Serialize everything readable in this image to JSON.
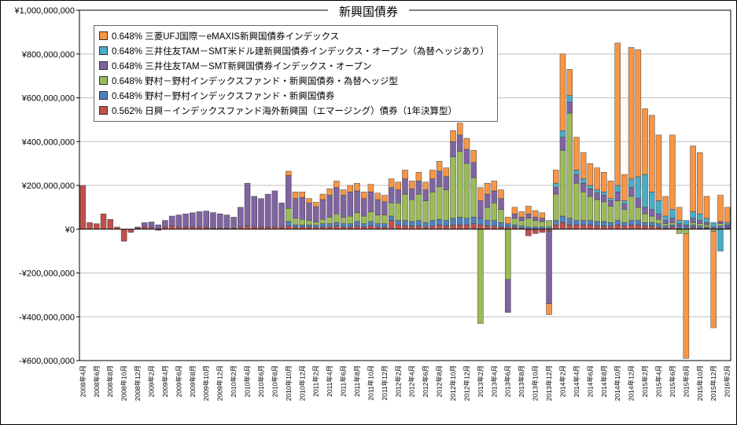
{
  "title": "新興国債券",
  "chart_data": {
    "type": "bar",
    "stacked": true,
    "title": "新興国債券",
    "grid": "horizontal",
    "legend_position": "top-left-inside",
    "series_values_unit": "million_jpy",
    "unit_multiplier": 1000000,
    "ylim": [
      -600000000,
      1000000000
    ],
    "y_ticks": [
      {
        "value": 1000000000,
        "label": "¥1,000,000,000"
      },
      {
        "value": 800000000,
        "label": "¥800,000,000"
      },
      {
        "value": 600000000,
        "label": "¥600,000,000"
      },
      {
        "value": 400000000,
        "label": "¥400,000,000"
      },
      {
        "value": 200000000,
        "label": "¥200,000,000"
      },
      {
        "value": 0,
        "label": "¥0"
      },
      {
        "value": -200000000,
        "label": "-¥200,000,000"
      },
      {
        "value": -400000000,
        "label": "-¥400,000,000"
      },
      {
        "value": -600000000,
        "label": "-¥600,000,000"
      }
    ],
    "x_label_interval": 2,
    "categories": [
      "2008年4月",
      "2008年5月",
      "2008年6月",
      "2008年7月",
      "2008年8月",
      "2008年9月",
      "2008年10月",
      "2008年11月",
      "2008年12月",
      "2009年1月",
      "2009年2月",
      "2009年3月",
      "2009年4月",
      "2009年5月",
      "2009年6月",
      "2009年7月",
      "2009年8月",
      "2009年9月",
      "2009年10月",
      "2009年11月",
      "2009年12月",
      "2010年1月",
      "2010年2月",
      "2010年3月",
      "2010年4月",
      "2010年5月",
      "2010年6月",
      "2010年7月",
      "2010年8月",
      "2010年9月",
      "2010年10月",
      "2010年11月",
      "2010年12月",
      "2011年1月",
      "2011年2月",
      "2011年3月",
      "2011年4月",
      "2011年5月",
      "2011年6月",
      "2011年7月",
      "2011年8月",
      "2011年9月",
      "2011年10月",
      "2011年11月",
      "2011年12月",
      "2012年1月",
      "2012年2月",
      "2012年3月",
      "2012年4月",
      "2012年5月",
      "2012年6月",
      "2012年7月",
      "2012年8月",
      "2012年9月",
      "2012年10月",
      "2012年11月",
      "2012年12月",
      "2013年1月",
      "2013年2月",
      "2013年3月",
      "2013年4月",
      "2013年5月",
      "2013年6月",
      "2013年7月",
      "2013年8月",
      "2013年9月",
      "2013年10月",
      "2013年11月",
      "2013年12月",
      "2014年1月",
      "2014年2月",
      "2014年3月",
      "2014年4月",
      "2014年5月",
      "2014年6月",
      "2014年7月",
      "2014年8月",
      "2014年9月",
      "2014年10月",
      "2014年11月",
      "2014年12月",
      "2015年1月",
      "2015年2月",
      "2015年3月",
      "2015年4月",
      "2015年5月",
      "2015年6月",
      "2015年7月",
      "2015年8月",
      "2015年9月",
      "2015年10月",
      "2015年11月",
      "2015年12月",
      "2016年1月",
      "2016年2月"
    ],
    "series": [
      {
        "name": "0.648% 三菱UFJ国際－eMAXIS新興国債券インデックス",
        "key": "emaxis",
        "color": "#F79646",
        "values": [
          0,
          0,
          0,
          0,
          0,
          0,
          0,
          0,
          0,
          0,
          0,
          0,
          0,
          0,
          0,
          0,
          0,
          0,
          0,
          0,
          0,
          0,
          0,
          0,
          0,
          0,
          0,
          0,
          0,
          0,
          20,
          30,
          25,
          20,
          20,
          25,
          30,
          30,
          25,
          30,
          35,
          30,
          35,
          30,
          30,
          40,
          35,
          40,
          35,
          40,
          35,
          40,
          45,
          40,
          50,
          55,
          50,
          55,
          60,
          50,
          45,
          40,
          30,
          30,
          25,
          35,
          30,
          25,
          -50,
          60,
          350,
          120,
          150,
          120,
          100,
          100,
          90,
          80,
          650,
          120,
          600,
          580,
          300,
          350,
          300,
          90,
          340,
          60,
          -570,
          300,
          280,
          100,
          -440,
          120,
          70
        ]
      },
      {
        "name": "0.648% 三井住友TAM－SMT米ドル建新興国債券インデックス・オープン（為替ヘッジあり）",
        "key": "smt_usd_hedged",
        "color": "#4BACC6",
        "values": [
          0,
          0,
          0,
          0,
          0,
          0,
          0,
          0,
          0,
          0,
          0,
          0,
          0,
          0,
          0,
          0,
          0,
          0,
          0,
          0,
          0,
          0,
          0,
          0,
          0,
          0,
          0,
          0,
          0,
          0,
          0,
          0,
          0,
          0,
          0,
          0,
          0,
          0,
          0,
          0,
          0,
          0,
          0,
          0,
          0,
          0,
          0,
          0,
          0,
          0,
          0,
          0,
          0,
          0,
          0,
          0,
          0,
          0,
          0,
          0,
          0,
          0,
          0,
          0,
          0,
          0,
          0,
          0,
          0,
          20,
          30,
          30,
          20,
          20,
          15,
          15,
          15,
          10,
          30,
          15,
          40,
          100,
          150,
          80,
          60,
          20,
          40,
          15,
          20,
          30,
          30,
          20,
          20,
          -100,
          10
        ]
      },
      {
        "name": "0.648% 三井住友TAM－SMT新興国債券インデックス・オープン",
        "key": "smt",
        "color": "#8064A2",
        "values": [
          0,
          0,
          0,
          0,
          0,
          0,
          0,
          0,
          5,
          20,
          25,
          20,
          30,
          45,
          55,
          60,
          65,
          70,
          75,
          70,
          65,
          60,
          50,
          90,
          195,
          140,
          130,
          150,
          165,
          110,
          150,
          90,
          100,
          80,
          70,
          90,
          100,
          120,
          100,
          110,
          100,
          80,
          90,
          70,
          60,
          70,
          60,
          70,
          50,
          60,
          50,
          60,
          70,
          60,
          70,
          75,
          65,
          70,
          80,
          60,
          55,
          50,
          -150,
          20,
          15,
          20,
          15,
          15,
          -330,
          30,
          60,
          50,
          40,
          40,
          35,
          30,
          30,
          25,
          40,
          25,
          40,
          40,
          30,
          30,
          25,
          15,
          20,
          10,
          10,
          20,
          15,
          10,
          10,
          10,
          10
        ]
      },
      {
        "name": "0.648% 野村－野村インデックスファンド・新興国債券・為替ヘッジ型",
        "key": "nomura_hedged",
        "color": "#9BBB59",
        "values": [
          0,
          0,
          0,
          0,
          0,
          0,
          0,
          0,
          0,
          0,
          0,
          0,
          0,
          0,
          0,
          0,
          0,
          0,
          0,
          0,
          0,
          0,
          0,
          0,
          0,
          0,
          0,
          0,
          0,
          0,
          60,
          30,
          25,
          20,
          15,
          20,
          30,
          40,
          30,
          35,
          40,
          35,
          45,
          40,
          40,
          60,
          80,
          120,
          100,
          120,
          100,
          130,
          150,
          140,
          280,
          300,
          250,
          180,
          -430,
          60,
          80,
          60,
          -230,
          30,
          25,
          40,
          30,
          25,
          30,
          120,
          300,
          480,
          170,
          130,
          110,
          100,
          90,
          75,
          90,
          60,
          110,
          60,
          40,
          30,
          20,
          10,
          10,
          -20,
          -20,
          10,
          10,
          10,
          -10,
          10,
          0
        ]
      },
      {
        "name": "0.648% 野村－野村インデックスファンド・新興国債券",
        "key": "nomura",
        "color": "#4F81BD",
        "values": [
          0,
          0,
          0,
          0,
          0,
          0,
          0,
          0,
          0,
          0,
          0,
          0,
          0,
          0,
          0,
          0,
          0,
          0,
          0,
          0,
          0,
          0,
          0,
          0,
          0,
          0,
          0,
          0,
          0,
          0,
          20,
          10,
          10,
          10,
          10,
          15,
          15,
          15,
          15,
          15,
          20,
          15,
          20,
          15,
          15,
          20,
          20,
          25,
          20,
          25,
          20,
          25,
          25,
          25,
          30,
          35,
          30,
          30,
          30,
          25,
          25,
          20,
          15,
          10,
          10,
          10,
          10,
          10,
          10,
          20,
          30,
          30,
          20,
          20,
          20,
          20,
          20,
          15,
          20,
          15,
          20,
          20,
          15,
          15,
          15,
          10,
          10,
          10,
          10,
          10,
          10,
          5,
          0,
          10,
          5
        ]
      },
      {
        "name": "0.562% 日興－インデックスファンド海外新興国（エマージング）債券（1年決算型）",
        "key": "nikko",
        "color": "#C0504D",
        "values": [
          200,
          30,
          25,
          70,
          45,
          10,
          -55,
          -15,
          5,
          10,
          8,
          -5,
          10,
          15,
          10,
          10,
          10,
          10,
          8,
          6,
          5,
          5,
          5,
          10,
          15,
          10,
          10,
          10,
          10,
          10,
          15,
          10,
          10,
          10,
          8,
          10,
          10,
          15,
          10,
          10,
          15,
          10,
          15,
          10,
          10,
          40,
          20,
          15,
          15,
          15,
          10,
          15,
          20,
          15,
          20,
          20,
          20,
          25,
          20,
          15,
          15,
          10,
          10,
          10,
          5,
          -30,
          -20,
          -15,
          -10,
          20,
          30,
          20,
          20,
          20,
          20,
          15,
          15,
          15,
          20,
          15,
          20,
          20,
          15,
          15,
          10,
          5,
          10,
          5,
          0,
          10,
          5,
          5,
          0,
          5,
          5
        ]
      }
    ]
  }
}
